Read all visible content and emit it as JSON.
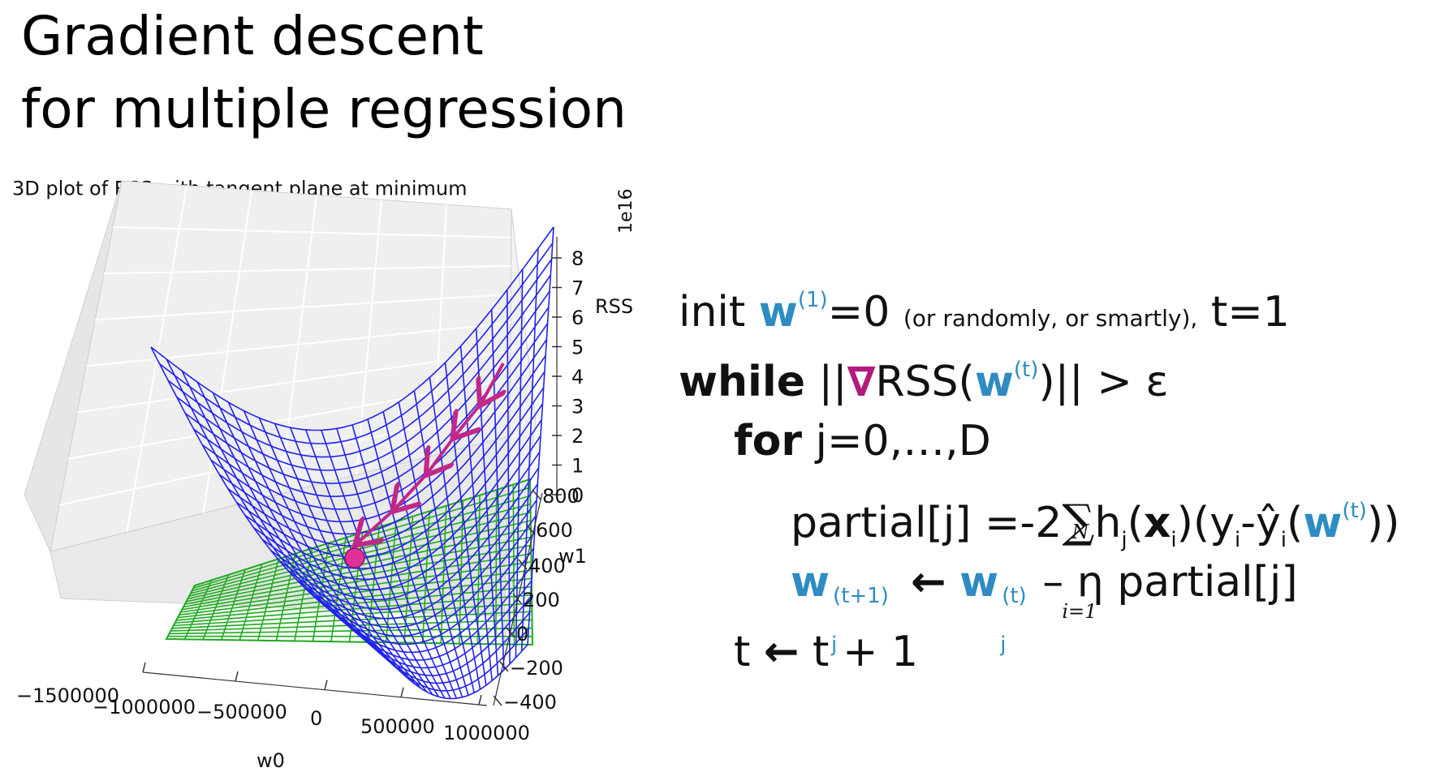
{
  "title": {
    "line1": "Gradient descent",
    "line2": "for multiple regression"
  },
  "chart_data": {
    "type": "surface3d",
    "title": "3D plot of RSS with tangent plane at minimum",
    "xlabel": "w0",
    "ylabel": "w1",
    "zlabel": "RSS",
    "z_scale_label": "1e16",
    "x_ticks": [
      "−1500000",
      "−1000000",
      "−500000",
      "0",
      "500000",
      "1000000"
    ],
    "y_ticks": [
      "−400",
      "−200",
      "0",
      "200",
      "400",
      "600",
      "800"
    ],
    "z_ticks": [
      "0",
      "1",
      "2",
      "3",
      "4",
      "5",
      "6",
      "7",
      "8"
    ],
    "surface_color": "#2222ee",
    "plane_color": "#22aa22",
    "path_color": "#c0288a",
    "minimum_marker_color": "#e0309a"
  },
  "algorithm": {
    "init_word": "init",
    "w": "w",
    "init_sup": "(1)",
    "init_eq": "=0",
    "init_note": "(or randomly, or smartly),",
    "init_t": "t=1",
    "while_word": "while",
    "bars_open": "||",
    "nabla": "∇",
    "rss": "RSS(",
    "sup_t": "(t)",
    "while_tail": ")|| > ε",
    "for_word": "for",
    "for_range": "j=0,…,D",
    "partial_lhs": "partial[j] =-2",
    "sum_symbol": "∑",
    "sum_upper": "N",
    "sum_lower": "i=1",
    "h": "h",
    "sub_j": "j",
    "open_paren": "(",
    "x": "x",
    "sub_i": "i",
    "y_part": ")(y",
    "minus_yhat": "-ŷ",
    "close_tail": "))",
    "sup_t1": "(t+1)",
    "arrow": "🡐",
    "update_tail": "– η partial[j]",
    "t_update_lhs": "t",
    "t_update_rhs": "t + 1"
  }
}
